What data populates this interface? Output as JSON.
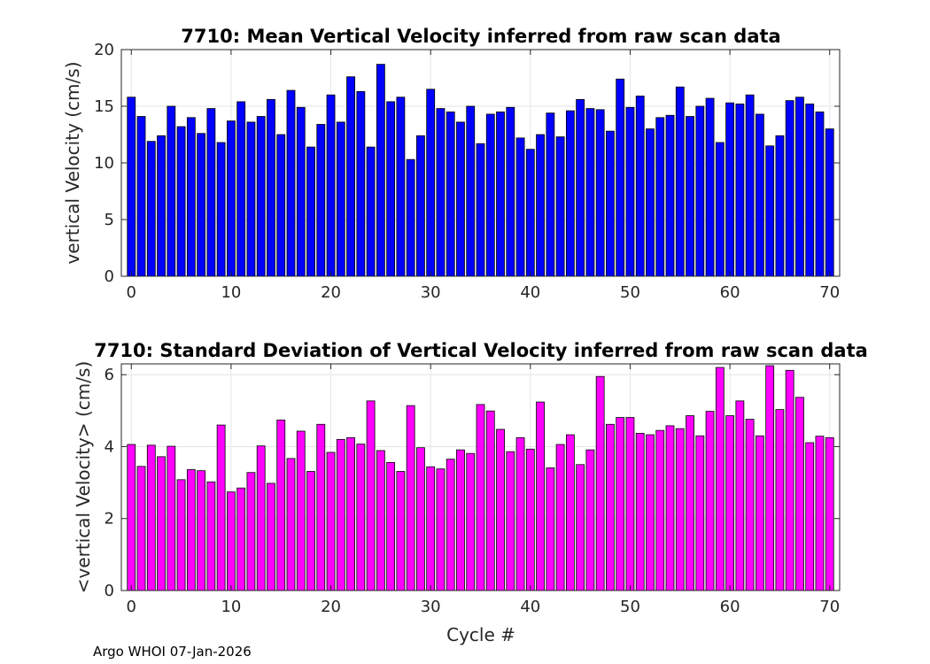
{
  "chart_data": [
    {
      "type": "bar",
      "title": "7710: Mean Vertical Velocity inferred from raw scan data",
      "xlabel": "",
      "ylabel": "vertical Velocity (cm/s)",
      "xlim": [
        -1,
        71
      ],
      "ylim": [
        0,
        20
      ],
      "xticks": [
        0,
        10,
        20,
        30,
        40,
        50,
        60,
        70
      ],
      "yticks": [
        0,
        5,
        10,
        15,
        20
      ],
      "grid": true,
      "bar_color": "#0000ff",
      "x": [
        0,
        1,
        2,
        3,
        4,
        5,
        6,
        7,
        8,
        9,
        10,
        11,
        12,
        13,
        14,
        15,
        16,
        17,
        18,
        19,
        20,
        21,
        22,
        23,
        24,
        25,
        26,
        27,
        28,
        29,
        30,
        31,
        32,
        33,
        34,
        35,
        36,
        37,
        38,
        39,
        40,
        41,
        42,
        43,
        44,
        45,
        46,
        47,
        48,
        49,
        50,
        51,
        52,
        53,
        54,
        55,
        56,
        57,
        58,
        59,
        60,
        61,
        62,
        63,
        64,
        65,
        66,
        67,
        68,
        69,
        70
      ],
      "values": [
        15.8,
        14.1,
        11.9,
        12.4,
        15.0,
        13.2,
        14.0,
        12.6,
        14.8,
        11.8,
        13.7,
        15.4,
        13.6,
        14.1,
        15.6,
        12.5,
        16.4,
        14.9,
        11.4,
        13.4,
        16.0,
        13.6,
        17.6,
        16.3,
        11.4,
        18.7,
        15.4,
        15.8,
        10.3,
        12.4,
        16.5,
        14.8,
        14.5,
        13.6,
        15.0,
        11.7,
        14.3,
        14.5,
        14.9,
        12.2,
        11.2,
        12.5,
        14.4,
        12.3,
        14.6,
        15.6,
        14.8,
        14.7,
        12.8,
        17.4,
        14.9,
        15.9,
        13.0,
        14.0,
        14.2,
        16.7,
        14.1,
        15.0,
        15.7,
        11.8,
        15.3,
        15.2,
        16.0,
        14.3,
        11.5,
        12.4,
        15.5,
        15.8,
        15.2,
        14.5,
        13.0
      ]
    },
    {
      "type": "bar",
      "title": "7710: Standard Deviation of Vertical Velocity inferred from raw scan data",
      "xlabel": "Cycle #",
      "ylabel": "<vertical Velocity> (cm/s)",
      "xlim": [
        -1,
        71
      ],
      "ylim": [
        0,
        6.3
      ],
      "xticks": [
        0,
        10,
        20,
        30,
        40,
        50,
        60,
        70
      ],
      "yticks": [
        0,
        2,
        4,
        6
      ],
      "grid": true,
      "bar_color": "#ff00ff",
      "x": [
        0,
        1,
        2,
        3,
        4,
        5,
        6,
        7,
        8,
        9,
        10,
        11,
        12,
        13,
        14,
        15,
        16,
        17,
        18,
        19,
        20,
        21,
        22,
        23,
        24,
        25,
        26,
        27,
        28,
        29,
        30,
        31,
        32,
        33,
        34,
        35,
        36,
        37,
        38,
        39,
        40,
        41,
        42,
        43,
        44,
        45,
        46,
        47,
        48,
        49,
        50,
        51,
        52,
        53,
        54,
        55,
        56,
        57,
        58,
        59,
        60,
        61,
        62,
        63,
        64,
        65,
        66,
        67,
        68,
        69,
        70
      ],
      "values": [
        4.06,
        3.45,
        4.04,
        3.72,
        4.01,
        3.08,
        3.36,
        3.33,
        3.02,
        4.6,
        2.74,
        2.85,
        3.28,
        4.02,
        2.98,
        4.74,
        3.67,
        4.43,
        3.31,
        4.62,
        3.84,
        4.2,
        4.25,
        4.07,
        5.27,
        3.89,
        3.56,
        3.31,
        5.14,
        3.97,
        3.44,
        3.38,
        3.65,
        3.91,
        3.81,
        5.17,
        4.99,
        4.48,
        3.86,
        4.25,
        3.93,
        5.24,
        3.41,
        4.06,
        4.33,
        3.5,
        3.91,
        5.95,
        4.62,
        4.81,
        4.81,
        4.37,
        4.33,
        4.45,
        4.58,
        4.5,
        4.86,
        4.3,
        4.98,
        6.2,
        4.86,
        5.27,
        4.76,
        4.3,
        6.25,
        5.03,
        6.12,
        5.37,
        4.11,
        4.29,
        4.25
      ]
    }
  ],
  "footer": {
    "note": "Argo WHOI 07-Jan-2026"
  }
}
